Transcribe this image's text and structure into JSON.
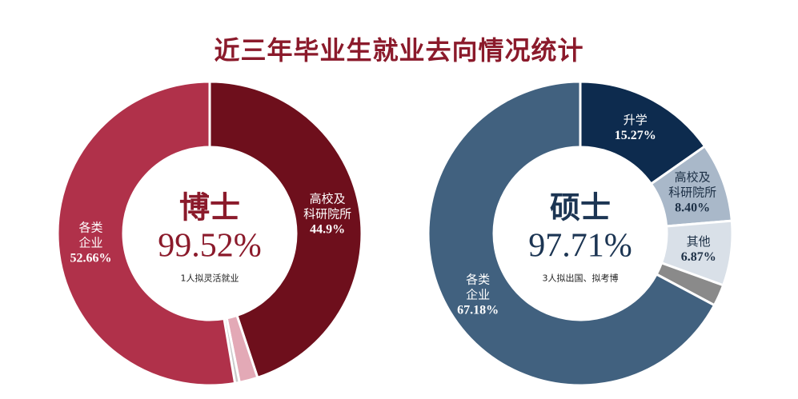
{
  "title": "近三年毕业生就业去向情况统计",
  "chart_data": [
    {
      "type": "donut",
      "center_label": "博士",
      "total": 99.52,
      "total_label": "99.52%",
      "note": "1人拟灵活就业",
      "categories": [
        "高校及\n科研院所",
        null,
        null,
        "各类\n企业"
      ],
      "values": [
        44.9,
        1.96,
        0.48,
        52.66
      ],
      "value_labels": [
        "44.9%",
        null,
        null,
        "52.66%"
      ],
      "colors": [
        "#6e0f1c",
        "#e3a9b6",
        "#c9c9c9",
        "#b0314a"
      ],
      "label_colors": [
        "#ffffff",
        null,
        null,
        "#ffffff"
      ],
      "accent": "#8b1a2b"
    },
    {
      "type": "donut",
      "center_label": "硕士",
      "total": 97.71,
      "total_label": "97.71%",
      "note": "3人拟出国、拟考博",
      "categories": [
        "升学",
        "高校及\n科研院所",
        "其他",
        null,
        "各类\n企业"
      ],
      "values": [
        15.27,
        8.4,
        6.87,
        2.29,
        67.18
      ],
      "value_labels": [
        "15.27%",
        "8.40%",
        "6.87%",
        null,
        "67.18%"
      ],
      "colors": [
        "#0d2b4e",
        "#a9b8c9",
        "#d9e0e8",
        "#8a8a8a",
        "#41617f"
      ],
      "label_colors": [
        "#ffffff",
        "#1c2f45",
        "#1c2f45",
        null,
        "#ffffff"
      ],
      "accent": "#1c3553"
    }
  ]
}
